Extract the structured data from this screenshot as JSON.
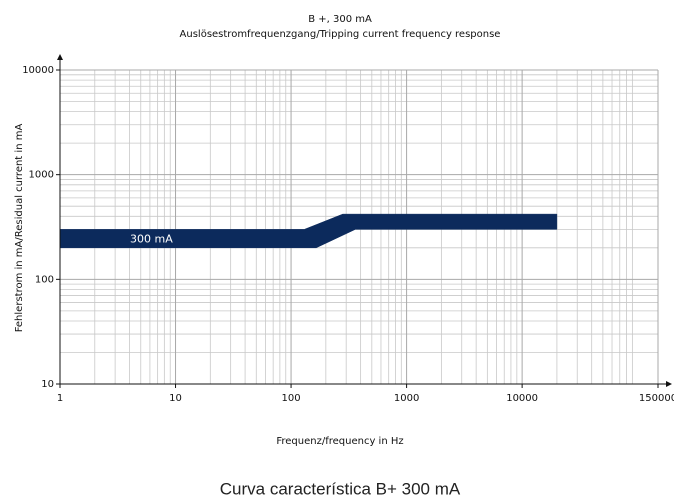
{
  "chart_data": {
    "type": "band",
    "title": "B +, 300 mA",
    "subtitle": "Auslösestromfrequenzgang/Tripping current frequency response",
    "x_label": "Frequenz/frequency in Hz",
    "y_label": "Fehlerstrom in mA/Residual current in mA",
    "caption": "Curva característica B+ 300 mA",
    "xscale": "log",
    "yscale": "log",
    "grid": true,
    "xlim": [
      1,
      150000
    ],
    "ylim": [
      10,
      10000
    ],
    "xticks": [
      1,
      10,
      100,
      1000,
      10000,
      150000
    ],
    "yticks": [
      10,
      100,
      1000,
      10000
    ],
    "band": {
      "label": "300 mA",
      "color": "#0c2a5c",
      "upper": {
        "x": [
          1,
          130,
          280,
          20000
        ],
        "values": [
          300,
          300,
          420,
          420
        ]
      },
      "lower": {
        "x": [
          1,
          165,
          360,
          20000
        ],
        "values": [
          200,
          200,
          300,
          300
        ]
      }
    }
  }
}
